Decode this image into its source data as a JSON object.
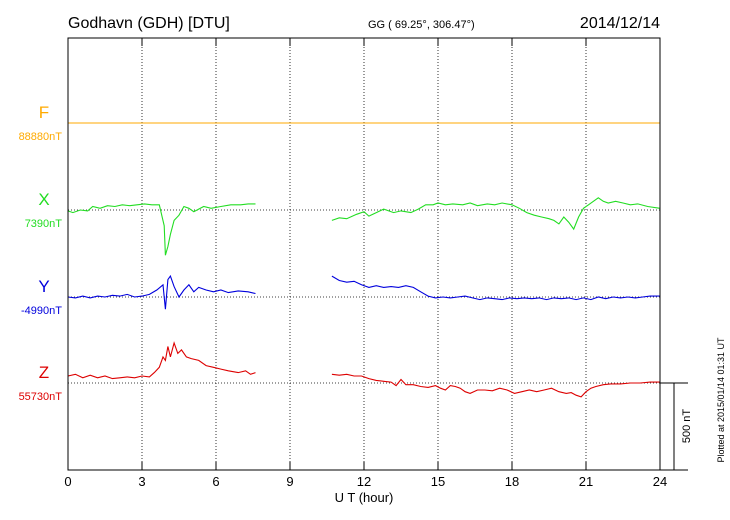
{
  "header": {
    "station": "Godhavn (GDH)  [DTU]",
    "coords": "GG ( 69.25°, 306.47°)",
    "date": "2014/12/14"
  },
  "footer": {
    "xlabel": "U T (hour)",
    "plotted": "Plotted at 2015/01/14 01:31  UT",
    "scale": "500 nT"
  },
  "colors": {
    "F": "#ffaa00",
    "X": "#22dd22",
    "Y": "#0000dd",
    "Z": "#dd0000",
    "axis": "#000000",
    "grid": "#000000"
  },
  "chart_data": {
    "type": "line",
    "xlabel": "U T (hour)",
    "xlim": [
      0,
      24
    ],
    "xticks": [
      0,
      3,
      6,
      9,
      12,
      15,
      18,
      21,
      24
    ],
    "grid": true,
    "scale_bar_nT": 500,
    "series": [
      {
        "name": "F",
        "baseline_label": "88880nT",
        "baseline": 88880,
        "points": [
          [
            0,
            88880
          ],
          [
            24,
            88880
          ]
        ]
      },
      {
        "name": "X",
        "baseline_label": "7390nT",
        "baseline": 7390,
        "segments": [
          [
            [
              0,
              7385
            ],
            [
              0.2,
              7375
            ],
            [
              0.5,
              7390
            ],
            [
              0.8,
              7385
            ],
            [
              1.0,
              7410
            ],
            [
              1.3,
              7400
            ],
            [
              1.6,
              7415
            ],
            [
              1.9,
              7410
            ],
            [
              2.2,
              7420
            ],
            [
              2.5,
              7415
            ],
            [
              2.8,
              7420
            ],
            [
              3.1,
              7425
            ],
            [
              3.4,
              7420
            ],
            [
              3.7,
              7420
            ],
            [
              3.9,
              7300
            ],
            [
              3.95,
              7130
            ],
            [
              4.05,
              7180
            ],
            [
              4.15,
              7250
            ],
            [
              4.3,
              7330
            ],
            [
              4.5,
              7360
            ],
            [
              4.7,
              7410
            ],
            [
              4.9,
              7400
            ],
            [
              5.1,
              7380
            ],
            [
              5.3,
              7395
            ],
            [
              5.5,
              7410
            ],
            [
              5.8,
              7400
            ],
            [
              6.2,
              7410
            ],
            [
              6.6,
              7420
            ],
            [
              7.0,
              7420
            ],
            [
              7.3,
              7425
            ],
            [
              7.6,
              7425
            ]
          ],
          [
            [
              10.7,
              7330
            ],
            [
              11.0,
              7345
            ],
            [
              11.3,
              7340
            ],
            [
              11.7,
              7365
            ],
            [
              12.0,
              7380
            ],
            [
              12.2,
              7355
            ],
            [
              12.5,
              7375
            ],
            [
              12.8,
              7395
            ],
            [
              13.2,
              7375
            ],
            [
              13.5,
              7385
            ],
            [
              13.9,
              7375
            ],
            [
              14.2,
              7395
            ],
            [
              14.5,
              7420
            ],
            [
              14.8,
              7420
            ],
            [
              15.0,
              7430
            ],
            [
              15.3,
              7420
            ],
            [
              15.6,
              7425
            ],
            [
              16.0,
              7420
            ],
            [
              16.3,
              7430
            ],
            [
              16.6,
              7415
            ],
            [
              17.0,
              7425
            ],
            [
              17.3,
              7420
            ],
            [
              17.6,
              7430
            ],
            [
              18.0,
              7420
            ],
            [
              18.3,
              7400
            ],
            [
              18.6,
              7375
            ],
            [
              18.9,
              7360
            ],
            [
              19.2,
              7350
            ],
            [
              19.5,
              7340
            ],
            [
              19.7,
              7330
            ],
            [
              19.9,
              7310
            ],
            [
              20.1,
              7350
            ],
            [
              20.3,
              7320
            ],
            [
              20.5,
              7280
            ],
            [
              20.7,
              7350
            ],
            [
              20.9,
              7400
            ],
            [
              21.1,
              7420
            ],
            [
              21.3,
              7440
            ],
            [
              21.5,
              7460
            ],
            [
              21.7,
              7440
            ],
            [
              21.9,
              7430
            ],
            [
              22.2,
              7440
            ],
            [
              22.5,
              7430
            ],
            [
              22.8,
              7420
            ],
            [
              23.1,
              7425
            ],
            [
              23.5,
              7410
            ],
            [
              24.0,
              7400
            ]
          ]
        ]
      },
      {
        "name": "Y",
        "baseline_label": "-4990nT",
        "baseline": -4990,
        "segments": [
          [
            [
              0,
              -4990
            ],
            [
              0.3,
              -4995
            ],
            [
              0.6,
              -4985
            ],
            [
              0.9,
              -4995
            ],
            [
              1.2,
              -4985
            ],
            [
              1.5,
              -4990
            ],
            [
              1.8,
              -4980
            ],
            [
              2.1,
              -4985
            ],
            [
              2.4,
              -4975
            ],
            [
              2.7,
              -4990
            ],
            [
              3.0,
              -4985
            ],
            [
              3.3,
              -4975
            ],
            [
              3.6,
              -4950
            ],
            [
              3.85,
              -4920
            ],
            [
              3.95,
              -5060
            ],
            [
              4.05,
              -4890
            ],
            [
              4.15,
              -4870
            ],
            [
              4.3,
              -4930
            ],
            [
              4.5,
              -4990
            ],
            [
              4.7,
              -4950
            ],
            [
              4.9,
              -4920
            ],
            [
              5.1,
              -4960
            ],
            [
              5.3,
              -4935
            ],
            [
              5.6,
              -4950
            ],
            [
              5.9,
              -4960
            ],
            [
              6.2,
              -4950
            ],
            [
              6.5,
              -4965
            ],
            [
              6.9,
              -4955
            ],
            [
              7.3,
              -4960
            ],
            [
              7.6,
              -4970
            ]
          ],
          [
            [
              10.7,
              -4870
            ],
            [
              11.0,
              -4895
            ],
            [
              11.3,
              -4905
            ],
            [
              11.6,
              -4900
            ],
            [
              11.9,
              -4920
            ],
            [
              12.2,
              -4935
            ],
            [
              12.5,
              -4925
            ],
            [
              12.8,
              -4935
            ],
            [
              13.1,
              -4930
            ],
            [
              13.4,
              -4935
            ],
            [
              13.7,
              -4925
            ],
            [
              14.0,
              -4935
            ],
            [
              14.3,
              -4960
            ],
            [
              14.6,
              -4985
            ],
            [
              14.9,
              -4995
            ],
            [
              15.2,
              -4990
            ],
            [
              15.5,
              -4995
            ],
            [
              15.8,
              -4990
            ],
            [
              16.1,
              -4985
            ],
            [
              16.4,
              -4995
            ],
            [
              16.7,
              -5005
            ],
            [
              17.0,
              -4995
            ],
            [
              17.3,
              -5000
            ],
            [
              17.6,
              -5005
            ],
            [
              17.9,
              -4995
            ],
            [
              18.2,
              -5000
            ],
            [
              18.5,
              -4995
            ],
            [
              18.8,
              -5000
            ],
            [
              19.1,
              -4995
            ],
            [
              19.4,
              -5005
            ],
            [
              19.7,
              -4995
            ],
            [
              20.0,
              -5000
            ],
            [
              20.3,
              -4995
            ],
            [
              20.6,
              -5005
            ],
            [
              20.9,
              -4995
            ],
            [
              21.2,
              -5005
            ],
            [
              21.5,
              -4990
            ],
            [
              21.8,
              -5000
            ],
            [
              22.1,
              -4990
            ],
            [
              22.4,
              -4995
            ],
            [
              22.7,
              -4990
            ],
            [
              23.0,
              -4995
            ],
            [
              23.3,
              -4990
            ],
            [
              23.6,
              -4985
            ],
            [
              24.0,
              -4985
            ]
          ]
        ]
      },
      {
        "name": "Z",
        "baseline_label": "55730nT",
        "baseline": 55730,
        "segments": [
          [
            [
              0,
              55770
            ],
            [
              0.3,
              55780
            ],
            [
              0.6,
              55760
            ],
            [
              0.9,
              55775
            ],
            [
              1.2,
              55760
            ],
            [
              1.5,
              55770
            ],
            [
              1.8,
              55755
            ],
            [
              2.1,
              55760
            ],
            [
              2.4,
              55765
            ],
            [
              2.7,
              55760
            ],
            [
              3.0,
              55770
            ],
            [
              3.3,
              55765
            ],
            [
              3.5,
              55790
            ],
            [
              3.7,
              55820
            ],
            [
              3.85,
              55880
            ],
            [
              3.95,
              55860
            ],
            [
              4.05,
              55940
            ],
            [
              4.15,
              55880
            ],
            [
              4.3,
              55960
            ],
            [
              4.45,
              55900
            ],
            [
              4.6,
              55920
            ],
            [
              4.8,
              55880
            ],
            [
              5.0,
              55870
            ],
            [
              5.3,
              55860
            ],
            [
              5.6,
              55830
            ],
            [
              5.9,
              55820
            ],
            [
              6.2,
              55810
            ],
            [
              6.5,
              55800
            ],
            [
              6.9,
              55790
            ],
            [
              7.2,
              55800
            ],
            [
              7.4,
              55780
            ],
            [
              7.6,
              55790
            ]
          ],
          [
            [
              10.7,
              55780
            ],
            [
              11.0,
              55775
            ],
            [
              11.3,
              55780
            ],
            [
              11.6,
              55770
            ],
            [
              11.9,
              55770
            ],
            [
              12.2,
              55755
            ],
            [
              12.5,
              55745
            ],
            [
              12.8,
              55740
            ],
            [
              13.1,
              55735
            ],
            [
              13.3,
              55715
            ],
            [
              13.5,
              55750
            ],
            [
              13.7,
              55720
            ],
            [
              14.0,
              55720
            ],
            [
              14.3,
              55710
            ],
            [
              14.6,
              55705
            ],
            [
              14.9,
              55715
            ],
            [
              15.1,
              55700
            ],
            [
              15.3,
              55690
            ],
            [
              15.5,
              55715
            ],
            [
              15.7,
              55710
            ],
            [
              15.9,
              55700
            ],
            [
              16.1,
              55680
            ],
            [
              16.3,
              55670
            ],
            [
              16.6,
              55690
            ],
            [
              16.9,
              55690
            ],
            [
              17.2,
              55685
            ],
            [
              17.5,
              55700
            ],
            [
              17.8,
              55690
            ],
            [
              18.1,
              55670
            ],
            [
              18.4,
              55680
            ],
            [
              18.7,
              55690
            ],
            [
              19.0,
              55680
            ],
            [
              19.3,
              55690
            ],
            [
              19.6,
              55700
            ],
            [
              19.9,
              55680
            ],
            [
              20.2,
              55670
            ],
            [
              20.4,
              55675
            ],
            [
              20.6,
              55660
            ],
            [
              20.8,
              55650
            ],
            [
              21.0,
              55680
            ],
            [
              21.2,
              55700
            ],
            [
              21.4,
              55710
            ],
            [
              21.7,
              55720
            ],
            [
              22.0,
              55725
            ],
            [
              22.4,
              55725
            ],
            [
              22.8,
              55730
            ],
            [
              23.2,
              55730
            ],
            [
              23.6,
              55735
            ],
            [
              24.0,
              55735
            ]
          ]
        ]
      }
    ]
  }
}
